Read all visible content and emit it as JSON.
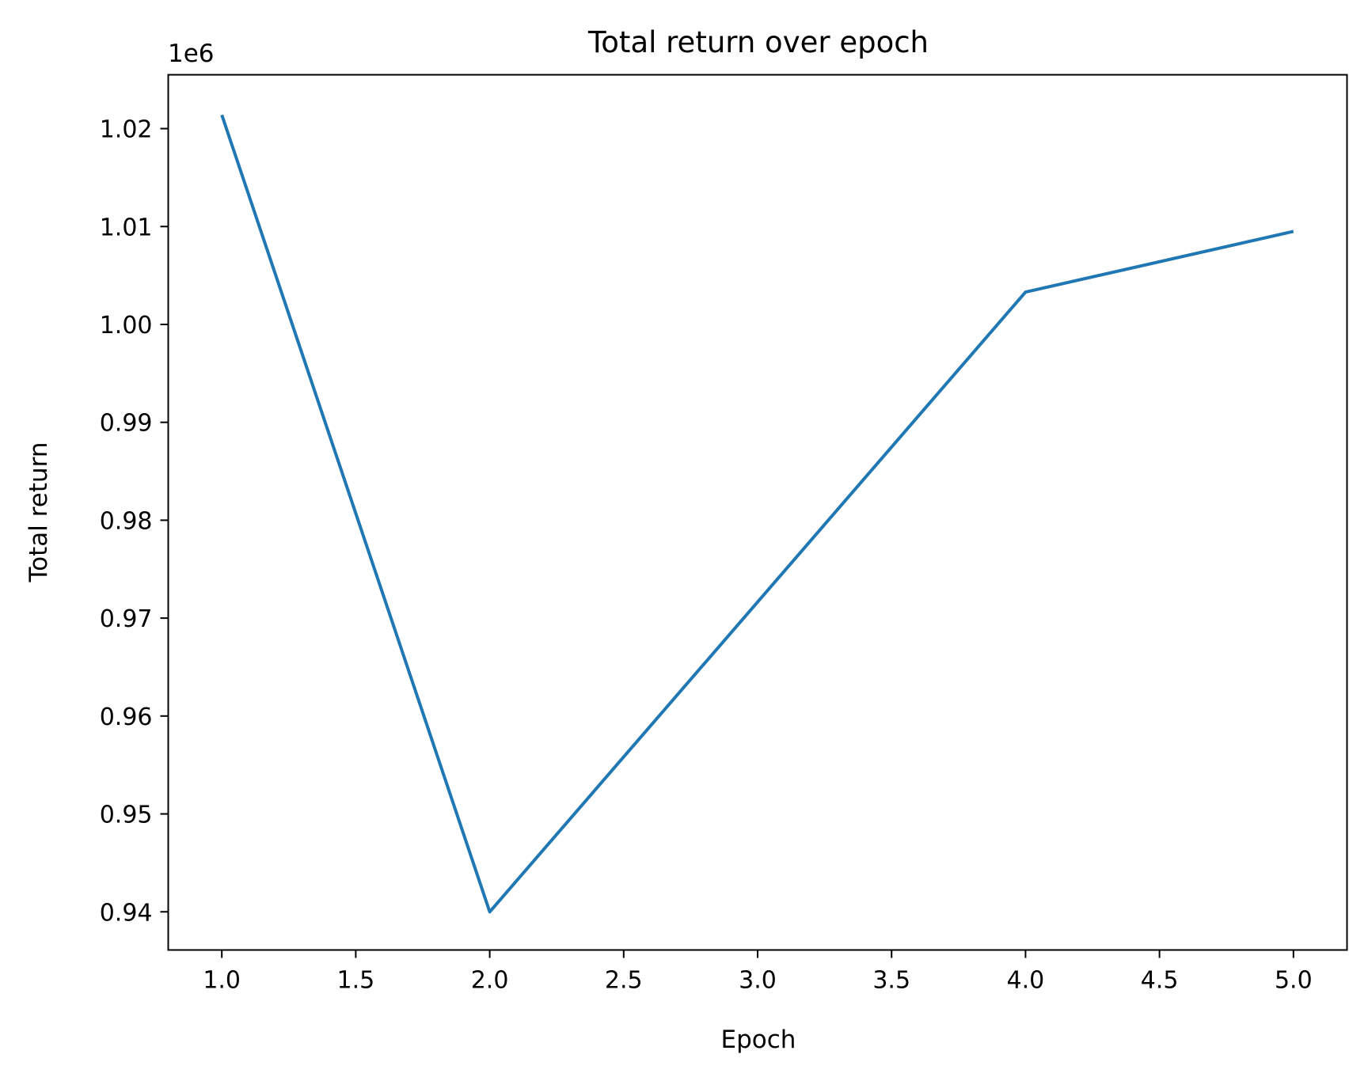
{
  "chart_data": {
    "type": "line",
    "title": "Total return over epoch",
    "xlabel": "Epoch",
    "ylabel": "Total return",
    "y_offset_label": "1e6",
    "xlim": [
      0.8,
      5.2
    ],
    "ylim": [
      0.9361,
      1.0255
    ],
    "x_ticks": [
      1.0,
      1.5,
      2.0,
      2.5,
      3.0,
      3.5,
      4.0,
      4.5,
      5.0
    ],
    "x_tick_labels": [
      "1.0",
      "1.5",
      "2.0",
      "2.5",
      "3.0",
      "3.5",
      "4.0",
      "4.5",
      "5.0"
    ],
    "y_ticks": [
      0.94,
      0.95,
      0.96,
      0.97,
      0.98,
      0.99,
      1.0,
      1.01,
      1.02
    ],
    "y_tick_labels": [
      "0.94",
      "0.95",
      "0.96",
      "0.97",
      "0.98",
      "0.99",
      "1.00",
      "1.01",
      "1.02"
    ],
    "grid": false,
    "series": [
      {
        "color": "#1f77b4",
        "x": [
          1,
          2,
          4,
          5
        ],
        "y": [
          1.0214,
          0.94,
          1.0033,
          1.0095
        ]
      }
    ]
  }
}
